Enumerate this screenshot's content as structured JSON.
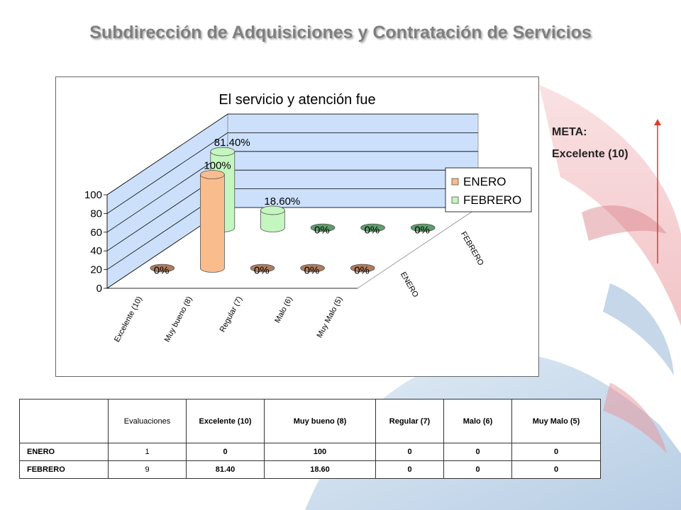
{
  "page": {
    "title": "Subdirección de Adquisiciones y Contratación de Servicios"
  },
  "meta": {
    "label": "META:",
    "value": "Excelente (10)"
  },
  "colors": {
    "enero": "#f9bc8c",
    "febrero": "#c4f6c0",
    "wall": "#cce0fb",
    "arrow": "#e03a2a"
  },
  "chart_data": {
    "type": "bar",
    "title": "El servicio y atención fue",
    "categories": [
      "Excelente (10)",
      "Muy bueno (8)",
      "Regular (7)",
      "Malo (6)",
      "Muy Malo (5)"
    ],
    "series": [
      {
        "name": "ENERO",
        "values": [
          0,
          100,
          0,
          0,
          0
        ],
        "labels": [
          "0%",
          "100%",
          "0%",
          "0%",
          "0%"
        ]
      },
      {
        "name": "FEBRERO",
        "values": [
          81.4,
          18.6,
          0,
          0,
          0
        ],
        "labels": [
          "81.40%",
          "18.60%",
          "0%",
          "0%",
          "0%"
        ]
      }
    ],
    "yticks": [
      "0",
      "20",
      "40",
      "60",
      "80",
      "100"
    ],
    "ylim": [
      0,
      100
    ],
    "depth_labels": [
      "ENERO",
      "FEBRERO"
    ],
    "legend": "right",
    "grid": true
  },
  "table": {
    "headers": [
      "",
      "Evaluaciones",
      "Excelente (10)",
      "Muy bueno (8)",
      "Regular (7)",
      "Malo (6)",
      "Muy Malo (5)"
    ],
    "rows": [
      {
        "name": "ENERO",
        "evaluaciones": "1",
        "values": [
          "0",
          "100",
          "0",
          "0",
          "0"
        ]
      },
      {
        "name": "FEBRERO",
        "evaluaciones": "9",
        "values": [
          "81.40",
          "18.60",
          "0",
          "0",
          "0"
        ]
      }
    ]
  }
}
